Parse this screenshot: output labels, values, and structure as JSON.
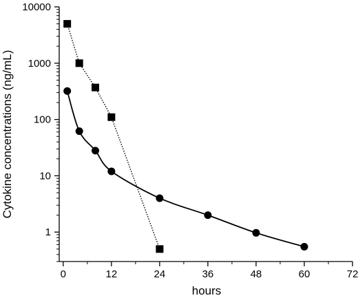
{
  "chart_data": {
    "type": "line",
    "title": "",
    "xlabel": "hours",
    "ylabel": "Cytokine concentrations  (ng/mL)",
    "xlim": [
      -1,
      72
    ],
    "ylim": [
      0.3,
      10000
    ],
    "y_scale": "log",
    "x_ticks": [
      0,
      12,
      24,
      36,
      48,
      60,
      72
    ],
    "x_tick_labels": [
      "0",
      "12",
      "24",
      "36",
      "48",
      "60",
      "72"
    ],
    "y_ticks": [
      1,
      10,
      100,
      1000,
      10000
    ],
    "y_tick_labels": [
      "1",
      "10",
      "100",
      "1000",
      "10000"
    ],
    "grid": false,
    "legend": "none",
    "series": [
      {
        "marker": "square",
        "line_style": "dotted",
        "color": "#000000",
        "x": [
          1,
          4,
          8,
          12,
          24
        ],
        "y": [
          5000,
          1000,
          370,
          110,
          0.5
        ]
      },
      {
        "marker": "circle",
        "line_style": "solid",
        "color": "#000000",
        "x": [
          1,
          4,
          8,
          12,
          24,
          36,
          48,
          60
        ],
        "y": [
          320,
          62,
          28,
          12,
          4,
          2,
          0.97,
          0.55
        ]
      }
    ]
  }
}
